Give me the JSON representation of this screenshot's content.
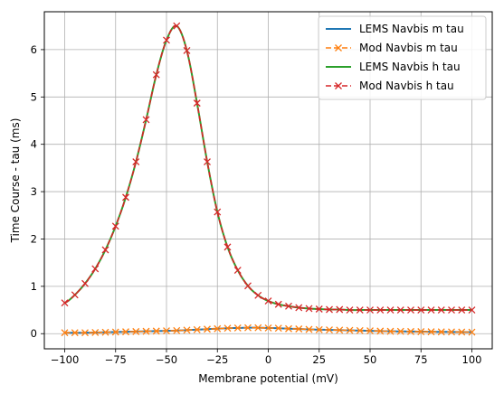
{
  "chart_data": {
    "type": "line",
    "title": "",
    "xlabel": "Membrane potential (mV)",
    "ylabel": "Time Course - tau (ms)",
    "xlim": [
      -110,
      110
    ],
    "ylim": [
      -0.32,
      6.8
    ],
    "grid": true,
    "legend_position": "top-right",
    "xticks": [
      -100,
      -75,
      -50,
      -25,
      0,
      25,
      50,
      75,
      100
    ],
    "xtick_labels": [
      "−100",
      "−75",
      "−50",
      "−25",
      "0",
      "25",
      "50",
      "75",
      "100"
    ],
    "yticks": [
      0,
      1,
      2,
      3,
      4,
      5,
      6
    ],
    "ytick_labels": [
      "0",
      "1",
      "2",
      "3",
      "4",
      "5",
      "6"
    ],
    "x": [
      -100,
      -95,
      -90,
      -85,
      -80,
      -75,
      -70,
      -65,
      -60,
      -55,
      -50,
      -45,
      -40,
      -35,
      -30,
      -25,
      -20,
      -15,
      -10,
      -5,
      0,
      5,
      10,
      15,
      20,
      25,
      30,
      35,
      40,
      45,
      50,
      55,
      60,
      65,
      70,
      75,
      80,
      85,
      90,
      95,
      100
    ],
    "series": [
      {
        "name": "LEMS Navbis m tau",
        "color": "#1f77b4",
        "style": "solid",
        "marker": "none",
        "values": [
          0.02,
          0.02,
          0.02,
          0.025,
          0.03,
          0.035,
          0.04,
          0.045,
          0.05,
          0.055,
          0.06,
          0.065,
          0.075,
          0.085,
          0.095,
          0.105,
          0.115,
          0.12,
          0.125,
          0.125,
          0.12,
          0.115,
          0.105,
          0.1,
          0.09,
          0.085,
          0.08,
          0.075,
          0.07,
          0.065,
          0.06,
          0.055,
          0.05,
          0.048,
          0.045,
          0.043,
          0.04,
          0.038,
          0.036,
          0.034,
          0.032
        ]
      },
      {
        "name": "Mod Navbis m tau",
        "color": "#ff7f0e",
        "style": "dashed",
        "marker": "x",
        "values": [
          0.02,
          0.02,
          0.02,
          0.025,
          0.03,
          0.035,
          0.04,
          0.045,
          0.05,
          0.055,
          0.06,
          0.065,
          0.075,
          0.085,
          0.095,
          0.105,
          0.115,
          0.12,
          0.125,
          0.125,
          0.12,
          0.115,
          0.105,
          0.1,
          0.09,
          0.085,
          0.08,
          0.075,
          0.07,
          0.065,
          0.06,
          0.055,
          0.05,
          0.048,
          0.045,
          0.043,
          0.04,
          0.038,
          0.036,
          0.034,
          0.032
        ]
      },
      {
        "name": "LEMS Navbis h tau",
        "color": "#2ca02c",
        "style": "solid",
        "marker": "none",
        "values": [
          0.65,
          0.82,
          1.06,
          1.37,
          1.77,
          2.27,
          2.88,
          3.63,
          4.52,
          5.47,
          6.2,
          6.5,
          5.98,
          4.87,
          3.63,
          2.57,
          1.83,
          1.34,
          1.01,
          0.81,
          0.69,
          0.62,
          0.58,
          0.55,
          0.53,
          0.52,
          0.51,
          0.51,
          0.5,
          0.5,
          0.5,
          0.5,
          0.5,
          0.5,
          0.5,
          0.5,
          0.5,
          0.5,
          0.5,
          0.5,
          0.5
        ]
      },
      {
        "name": "Mod Navbis h tau",
        "color": "#d62728",
        "style": "dashed",
        "marker": "x",
        "values": [
          0.65,
          0.82,
          1.06,
          1.37,
          1.77,
          2.27,
          2.88,
          3.63,
          4.52,
          5.47,
          6.2,
          6.5,
          5.98,
          4.87,
          3.63,
          2.57,
          1.83,
          1.34,
          1.01,
          0.81,
          0.69,
          0.62,
          0.58,
          0.55,
          0.53,
          0.52,
          0.51,
          0.51,
          0.5,
          0.5,
          0.5,
          0.5,
          0.5,
          0.5,
          0.5,
          0.5,
          0.5,
          0.5,
          0.5,
          0.5,
          0.5
        ]
      }
    ]
  }
}
